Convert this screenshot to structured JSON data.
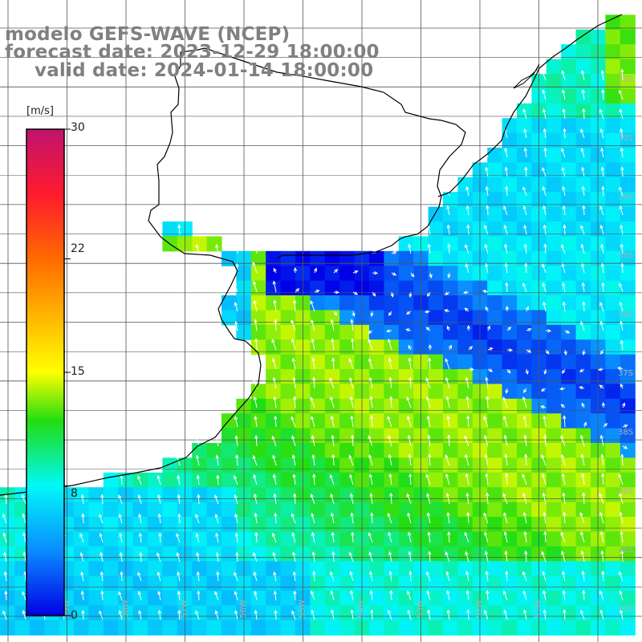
{
  "title": {
    "line1": "modelo GEFS-WAVE (NCEP)",
    "line2": "forecast date: 2023-12-29 18:00:00",
    "line3": "valid date: 2024-01-14 18:00:00"
  },
  "colorbar": {
    "unit": "[m/s]",
    "tick_labels": [
      "30",
      "22",
      "15",
      "8",
      "0"
    ],
    "stops": [
      {
        "value": 30,
        "color": "#c0136e"
      },
      {
        "value": 26,
        "color": "#ff1a2e"
      },
      {
        "value": 22,
        "color": "#ff6a00"
      },
      {
        "value": 15,
        "color": "#ffff00"
      },
      {
        "value": 12,
        "color": "#22dd10"
      },
      {
        "value": 8,
        "color": "#00f8f8"
      },
      {
        "value": 4,
        "color": "#0a8cff"
      },
      {
        "value": 0,
        "color": "#0000e6"
      }
    ]
  },
  "map": {
    "parameter": "wind speed",
    "units": "m/s",
    "colors": {
      "land": "#ffffff",
      "coastline": "#000000",
      "grid": "#555555",
      "arrows": "#ffffff",
      "axis_labels": "#b0b0b0"
    },
    "lat_labels": [
      "32S",
      "33S",
      "34S",
      "35S",
      "36S",
      "37S",
      "38S",
      "39S",
      "40S",
      "41S"
    ],
    "lon_labels": [
      "59W",
      "58W",
      "57W",
      "56W",
      "55W",
      "54W",
      "53W",
      "52W",
      "51W"
    ],
    "speed_regions": [
      {
        "region": "Rio de la Plata estuary",
        "speed_ms": 3
      },
      {
        "region": "offshore Uruguay band (34S-37S)",
        "speed_ms": 3
      },
      {
        "region": "central Buenos Aires shelf (36S-39S)",
        "speed_ms": 12
      },
      {
        "region": "southern shelf (40S-41S)",
        "speed_ms": 8
      },
      {
        "region": "southern Brazil coast (32S-33S)",
        "speed_ms": 8
      }
    ],
    "dominant_wind_direction": "from south / southeast"
  }
}
